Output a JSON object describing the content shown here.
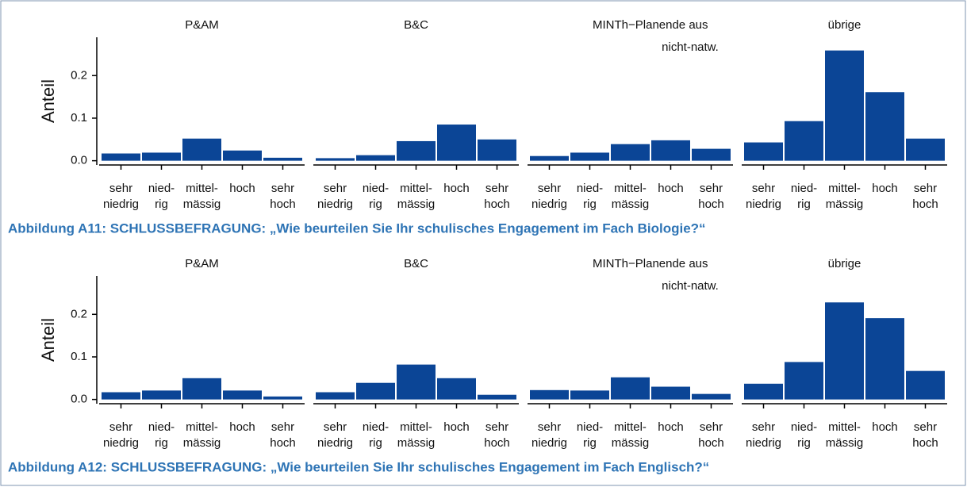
{
  "chart_data": [
    {
      "type": "bar",
      "ylabel": "Anteil",
      "color": "#0b4596",
      "caption": "Abbildung A11: SCHLUSSBEFRAGUNG: „Wie beurteilen Sie Ihr schulisches Engagement im Fach Biologie?“",
      "categories": [
        [
          "sehr",
          "niedrig"
        ],
        [
          "nied-",
          "rig"
        ],
        [
          "mittel-",
          "mässig"
        ],
        [
          "hoch"
        ],
        [
          "sehr",
          "hoch"
        ]
      ],
      "ylim": [
        -0.01,
        0.29
      ],
      "yticks": [
        {
          "value": 0,
          "label": "0.0"
        },
        0.1,
        0.2
      ],
      "facets": [
        {
          "title": [
            "P&AM"
          ],
          "values": [
            0.017,
            0.019,
            0.052,
            0.024,
            0.007
          ]
        },
        {
          "title": [
            "B&C"
          ],
          "values": [
            0.006,
            0.013,
            0.046,
            0.085,
            0.05
          ]
        },
        {
          "title": [
            "MINTh−Planende aus",
            "nicht-natw."
          ],
          "values": [
            0.011,
            0.019,
            0.039,
            0.048,
            0.028
          ]
        },
        {
          "title": [
            "übrige"
          ],
          "values": [
            0.043,
            0.093,
            0.259,
            0.161,
            0.052
          ]
        }
      ]
    },
    {
      "type": "bar",
      "ylabel": "Anteil",
      "color": "#0b4596",
      "caption": "Abbildung A12: SCHLUSSBEFRAGUNG: „Wie beurteilen Sie Ihr schulisches Engagement im Fach Englisch?“",
      "categories": [
        [
          "sehr",
          "niedrig"
        ],
        [
          "nied-",
          "rig"
        ],
        [
          "mittel-",
          "mässig"
        ],
        [
          "hoch"
        ],
        [
          "sehr",
          "hoch"
        ]
      ],
      "ylim": [
        -0.01,
        0.29
      ],
      "yticks": [
        {
          "value": 0,
          "label": "0.0"
        },
        0.1,
        0.2
      ],
      "facets": [
        {
          "title": [
            "P&AM"
          ],
          "values": [
            0.017,
            0.021,
            0.05,
            0.021,
            0.007
          ]
        },
        {
          "title": [
            "B&C"
          ],
          "values": [
            0.017,
            0.039,
            0.082,
            0.05,
            0.011
          ]
        },
        {
          "title": [
            "MINTh−Planende aus",
            "nicht-natw."
          ],
          "values": [
            0.022,
            0.021,
            0.052,
            0.03,
            0.013
          ]
        },
        {
          "title": [
            "übrige"
          ],
          "values": [
            0.037,
            0.088,
            0.228,
            0.191,
            0.067
          ]
        }
      ]
    }
  ]
}
